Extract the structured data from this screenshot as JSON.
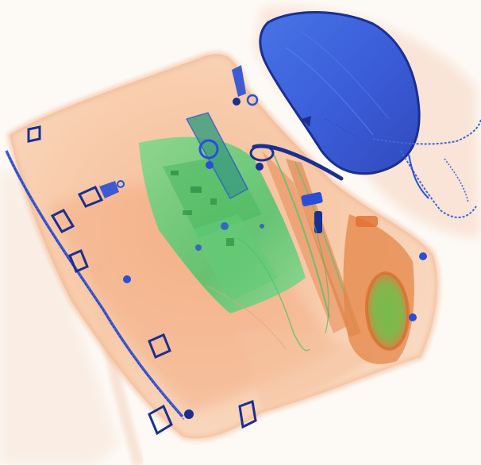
{
  "image": {
    "kind": "x-ray baggage scan",
    "colors": {
      "background": "#fdfaf6",
      "organic_orange": "#f2a173",
      "organic_light": "#f7d2b6",
      "mixed_green": "#59d07a",
      "metal_blue": "#2a4fd6",
      "dense_blue": "#1b2f92",
      "orange_dense": "#e0733d"
    },
    "objects": [
      "bag-outline",
      "bag-strap",
      "zipper-track",
      "electronics-block",
      "pouch-device",
      "long-rod",
      "round-container",
      "metal-clips",
      "buckles",
      "cables"
    ]
  }
}
